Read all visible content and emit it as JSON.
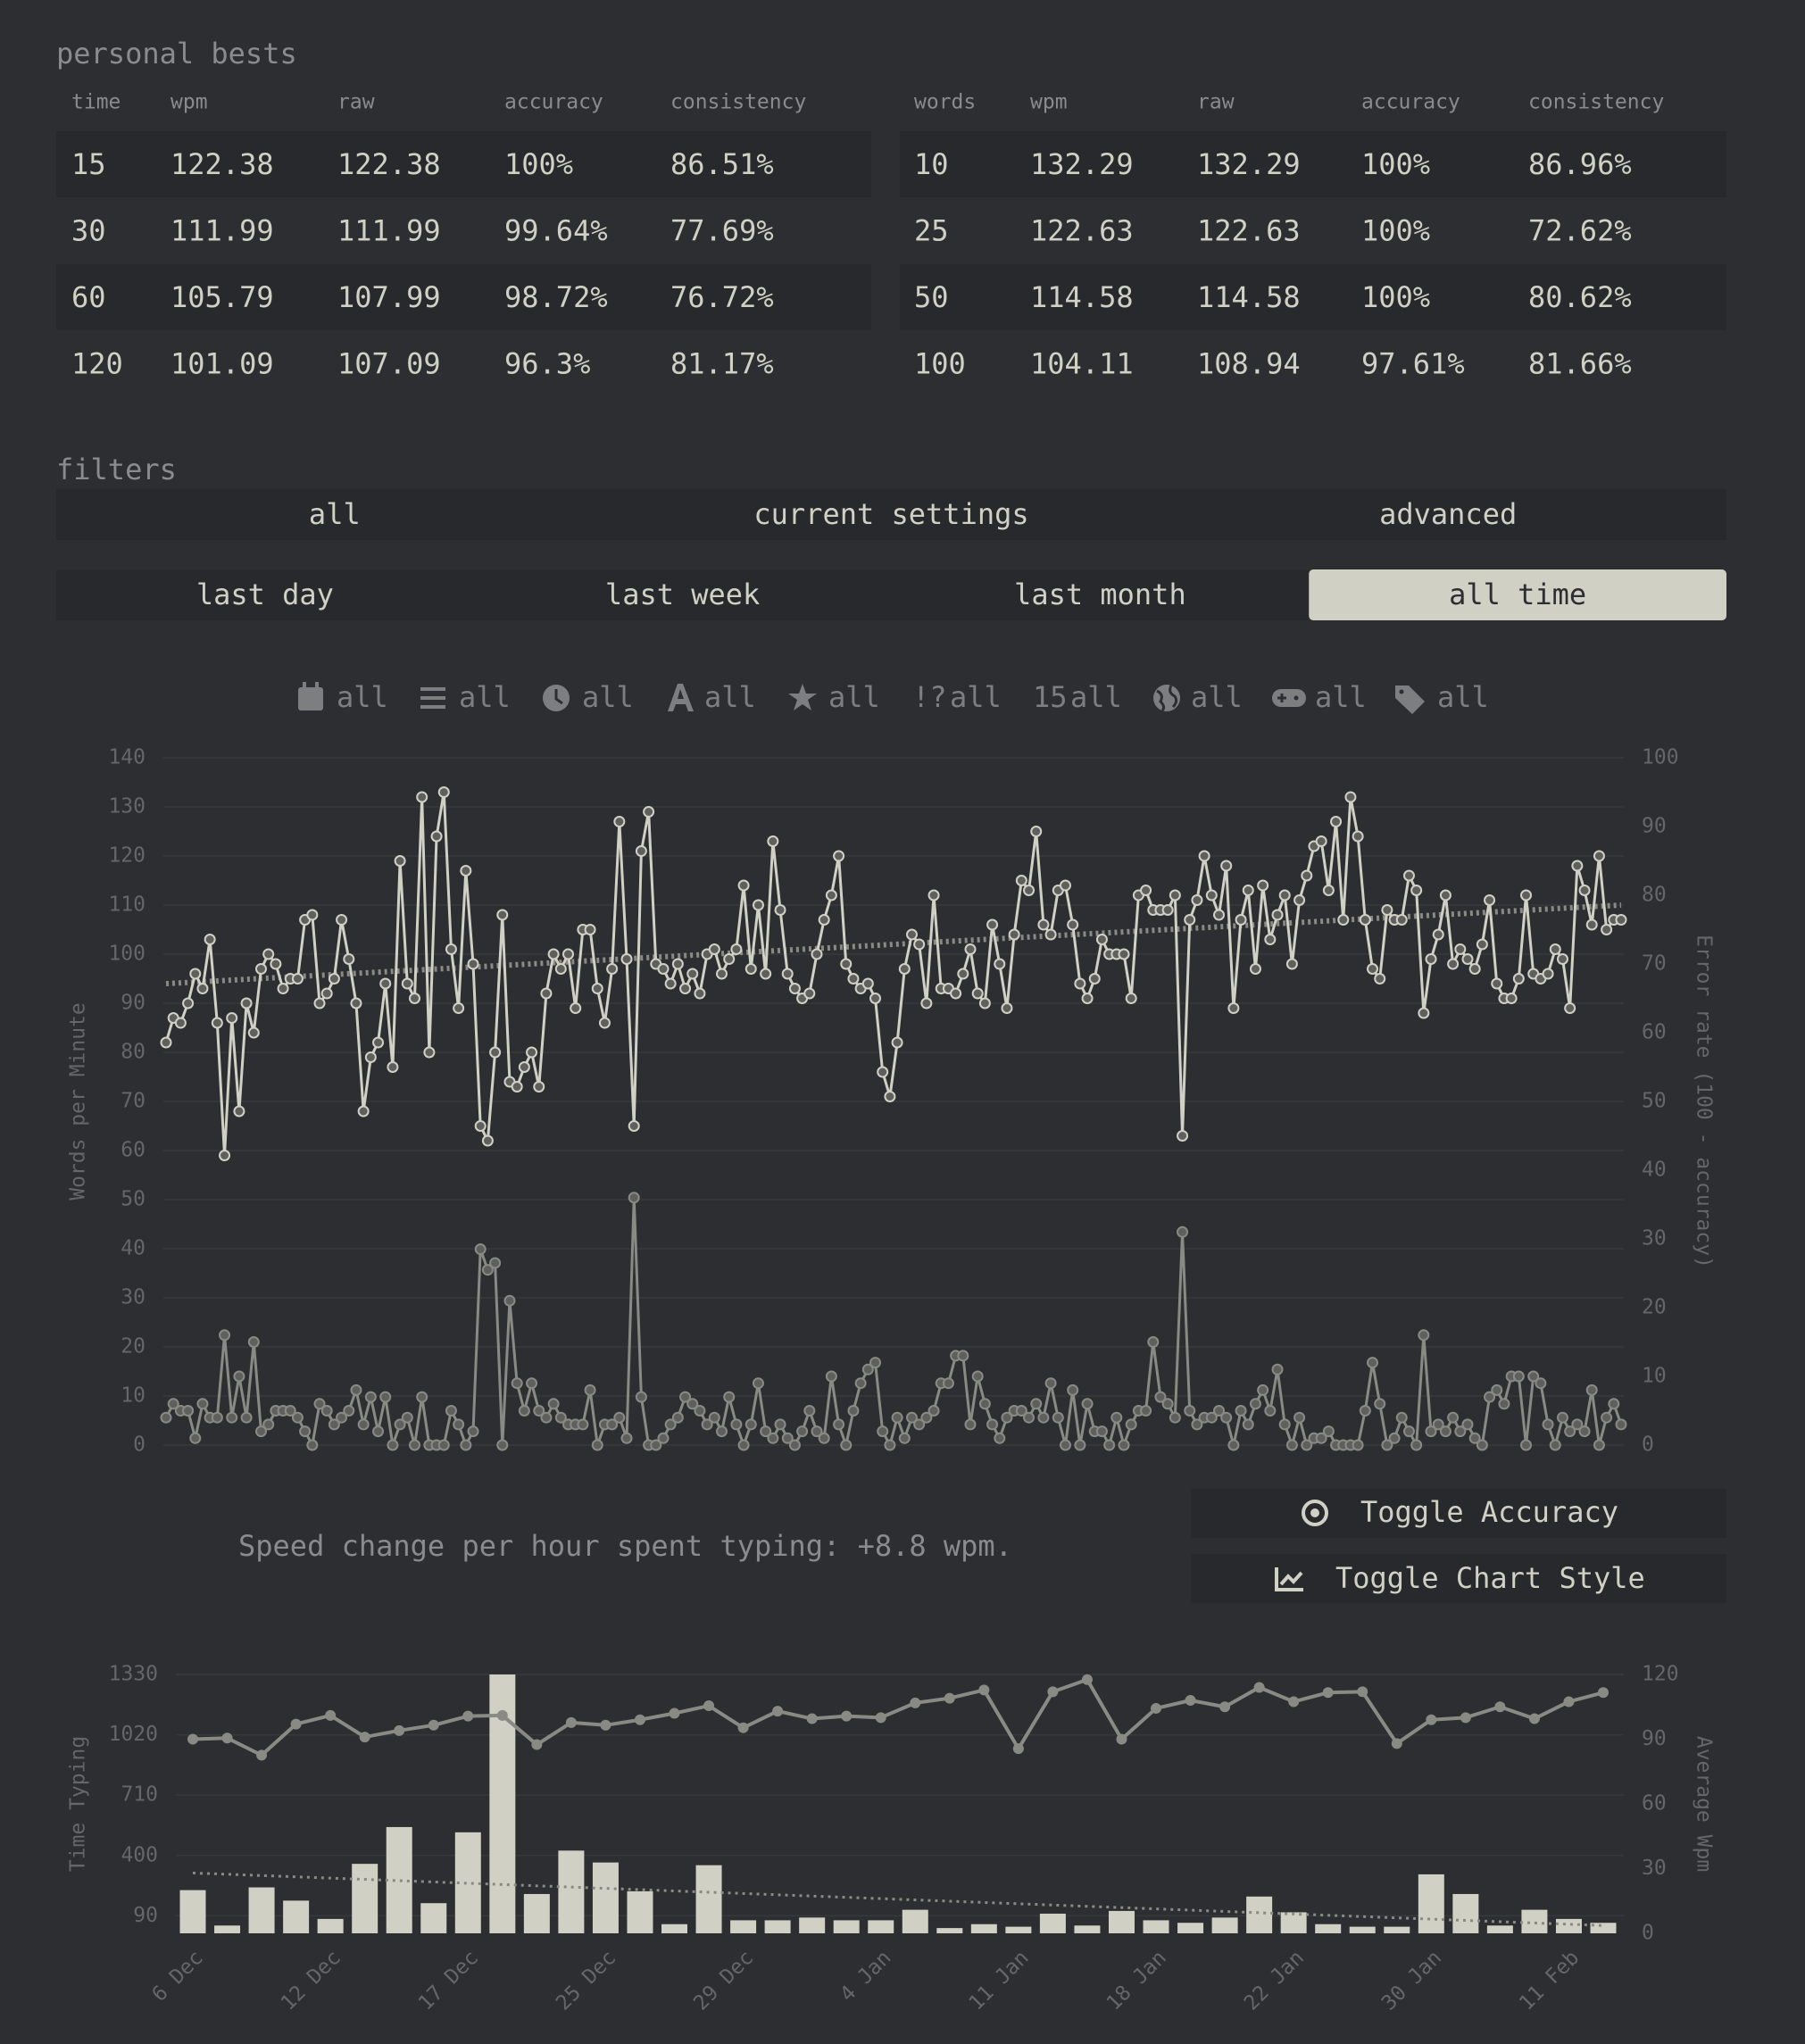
{
  "personal_bests": {
    "title": "personal bests",
    "tables": [
      {
        "headers": [
          "time",
          "wpm",
          "raw",
          "accuracy",
          "consistency"
        ],
        "rows": [
          [
            "15",
            "122.38",
            "122.38",
            "100%",
            "86.51%"
          ],
          [
            "30",
            "111.99",
            "111.99",
            "99.64%",
            "77.69%"
          ],
          [
            "60",
            "105.79",
            "107.99",
            "98.72%",
            "76.72%"
          ],
          [
            "120",
            "101.09",
            "107.09",
            "96.3%",
            "81.17%"
          ]
        ]
      },
      {
        "headers": [
          "words",
          "wpm",
          "raw",
          "accuracy",
          "consistency"
        ],
        "rows": [
          [
            "10",
            "132.29",
            "132.29",
            "100%",
            "86.96%"
          ],
          [
            "25",
            "122.63",
            "122.63",
            "100%",
            "72.62%"
          ],
          [
            "50",
            "114.58",
            "114.58",
            "100%",
            "80.62%"
          ],
          [
            "100",
            "104.11",
            "108.94",
            "97.61%",
            "81.66%"
          ]
        ]
      }
    ]
  },
  "filters": {
    "title": "filters",
    "modes": [
      "all",
      "current settings",
      "advanced"
    ],
    "ranges": [
      "last day",
      "last week",
      "last month",
      "all time"
    ],
    "active_range": 3,
    "tag_filters": [
      {
        "label": "all"
      },
      {
        "label": "all"
      },
      {
        "label": "all"
      },
      {
        "label": "all"
      },
      {
        "label": "all"
      },
      {
        "icon_text": "!?",
        "label": "all"
      },
      {
        "icon_text": "15",
        "label": "all"
      },
      {
        "label": "all"
      },
      {
        "label": "all"
      },
      {
        "label": "all"
      }
    ]
  },
  "chart_data": [
    {
      "type": "line",
      "ylabel": "Words per Minute",
      "y2label": "Error rate (100 - accuracy)",
      "ylim": [
        0,
        140
      ],
      "yticks": [
        0,
        10,
        20,
        30,
        40,
        50,
        60,
        70,
        80,
        90,
        100,
        110,
        120,
        130,
        140
      ],
      "y2lim": [
        0,
        100
      ],
      "y2ticks": [
        0,
        10,
        20,
        30,
        40,
        50,
        60,
        70,
        80,
        90,
        100
      ],
      "grid": true,
      "series": [
        {
          "type": "line",
          "color": "#d1d0c5",
          "values": [
            82,
            87,
            86,
            90,
            96,
            93,
            103,
            86,
            59,
            87,
            68,
            90,
            84,
            97,
            100,
            98,
            93,
            95,
            95,
            107,
            108,
            90,
            92,
            95,
            107,
            99,
            90,
            68,
            79,
            82,
            94,
            77,
            119,
            94,
            91,
            132,
            80,
            124,
            133,
            101,
            89,
            117,
            98,
            65,
            62,
            80,
            108,
            74,
            73,
            77,
            80,
            73,
            92,
            100,
            97,
            100,
            89,
            105,
            105,
            93,
            86,
            97,
            127,
            99,
            65,
            121,
            129,
            98,
            97,
            94,
            98,
            93,
            96,
            92,
            100,
            101,
            96,
            99,
            101,
            114,
            97,
            110,
            96,
            123,
            109,
            96,
            93,
            91,
            92,
            100,
            107,
            112,
            120,
            98,
            95,
            93,
            94,
            91,
            76,
            71,
            82,
            97,
            104,
            102,
            90,
            112,
            93,
            93,
            92,
            96,
            101,
            92,
            90,
            106,
            98,
            89,
            104,
            115,
            113,
            125,
            106,
            104,
            113,
            114,
            106,
            94,
            91,
            95,
            103,
            100,
            100,
            100,
            91,
            112,
            113,
            109,
            109,
            109,
            112,
            63,
            107,
            111,
            120,
            112,
            108,
            118,
            89,
            107,
            113,
            97,
            114,
            103,
            108,
            112,
            98,
            111,
            116,
            122,
            123,
            113,
            127,
            107,
            132,
            124,
            107,
            97,
            95,
            109,
            107,
            107,
            116,
            113,
            88,
            99,
            104,
            112,
            98,
            101,
            99,
            97,
            102,
            111,
            94,
            91,
            91,
            95,
            112,
            96,
            95,
            96,
            101,
            99,
            89,
            118,
            113,
            106,
            120,
            105,
            107,
            107
          ]
        },
        {
          "type": "line",
          "color": "#8a8a84",
          "axis": "y2",
          "values": [
            4,
            6,
            5,
            5,
            1,
            6,
            4,
            4,
            16,
            4,
            10,
            4,
            15,
            2,
            3,
            5,
            5,
            5,
            4,
            2,
            0,
            6,
            5,
            3,
            4,
            5,
            8,
            3,
            7,
            2,
            7,
            0,
            3,
            4,
            0,
            7,
            0,
            0,
            0,
            5,
            3,
            0,
            2,
            28.5,
            25.5,
            26.5,
            0,
            21,
            9,
            5,
            9,
            5,
            4,
            6,
            4,
            3,
            3,
            3,
            8,
            0,
            3,
            3,
            4,
            1,
            36,
            7,
            0,
            0,
            1,
            3,
            4,
            7,
            6,
            5,
            3,
            4,
            2,
            7,
            3,
            0,
            3,
            9,
            2,
            1,
            3,
            1,
            0,
            2,
            5,
            2,
            1,
            10,
            3,
            0,
            5,
            9,
            11,
            12,
            2,
            0,
            4,
            1,
            4,
            3,
            4,
            5,
            9,
            9,
            13,
            13,
            3,
            10,
            6,
            3,
            1,
            4,
            5,
            5,
            4,
            6,
            4,
            9,
            4,
            0,
            8,
            0,
            6,
            2,
            2,
            0,
            4,
            0,
            3,
            5,
            5,
            15,
            7,
            6,
            4,
            31,
            5,
            3,
            4,
            4,
            5,
            4,
            0,
            5,
            3,
            6,
            8,
            5,
            11,
            3,
            0,
            4,
            0,
            1,
            1,
            2,
            0,
            0,
            0,
            0,
            5,
            12,
            6,
            0,
            1,
            4,
            2,
            0,
            16,
            2,
            3,
            2,
            4,
            2,
            3,
            1,
            0,
            7,
            8,
            6,
            10,
            10,
            0,
            10,
            9,
            3,
            0,
            4,
            2,
            3,
            2,
            8,
            0,
            4,
            6,
            3
          ]
        }
      ],
      "trend": {
        "color": "#8a8a84",
        "values": [
          94,
          110
        ]
      }
    },
    {
      "type": "bar",
      "ylabel": "Time Typing",
      "y2label": "Average Wpm",
      "categories": [
        "6 Dec",
        null,
        null,
        null,
        "12 Dec",
        null,
        null,
        null,
        "17 Dec",
        null,
        null,
        null,
        "25 Dec",
        null,
        null,
        null,
        "29 Dec",
        null,
        null,
        null,
        "4 Jan",
        null,
        null,
        null,
        "11 Jan",
        null,
        null,
        null,
        "18 Jan",
        null,
        null,
        null,
        "22 Jan",
        null,
        null,
        null,
        "30 Jan",
        null,
        null,
        null,
        "11 Feb",
        null
      ],
      "ylim": [
        0,
        1330
      ],
      "yticks": [
        90,
        400,
        710,
        1020,
        1330
      ],
      "y2lim": [
        0,
        120
      ],
      "y2ticks": [
        0,
        30,
        60,
        90,
        120
      ],
      "grid": true,
      "series": [
        {
          "type": "bar",
          "color": "#d1d0c5",
          "values": [
            222,
            40,
            236,
            168,
            74,
            357,
            546,
            155,
            519,
            1330,
            202,
            425,
            364,
            216,
            47,
            350,
            67,
            67,
            81,
            67,
            67,
            121,
            27,
            47,
            34,
            101,
            40,
            115,
            67,
            54,
            81,
            189,
            108,
            47,
            34,
            34,
            303,
            202,
            40,
            121,
            74,
            54
          ]
        },
        {
          "type": "line",
          "color": "#8a8a84",
          "axis": "y2",
          "values": [
            90,
            90.5,
            82.6,
            97,
            101,
            91,
            94,
            96.5,
            100.7,
            101,
            87.5,
            97.7,
            96.5,
            99,
            102,
            105.5,
            95.3,
            103,
            99.5,
            100.7,
            100,
            106.8,
            109,
            112.8,
            85.6,
            112,
            117.6,
            90,
            104.3,
            108,
            105,
            114,
            107.4,
            111.6,
            112,
            88,
            99,
            100,
            105,
            99.5,
            107.4,
            111.6
          ]
        }
      ],
      "trend": {
        "color": "#8a8a84",
        "values": [
          310,
          40
        ]
      }
    }
  ],
  "speed_change": "Speed change per hour spent typing: +8.8 wpm.",
  "buttons": [
    "Toggle Accuracy",
    "Toggle Chart Style"
  ]
}
